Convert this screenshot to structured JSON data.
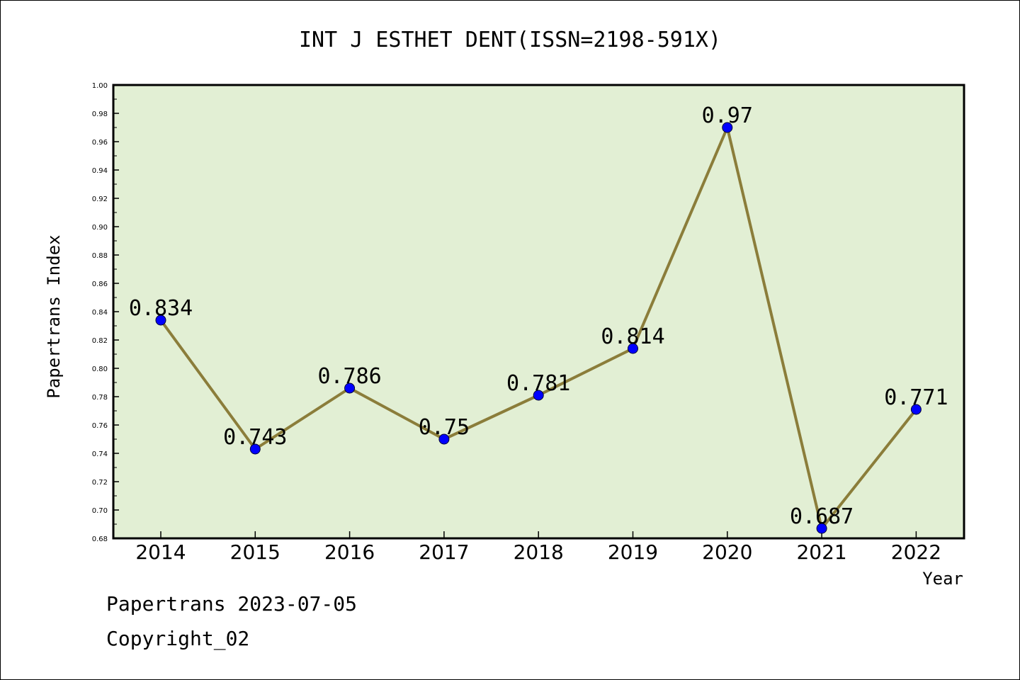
{
  "chart_data": {
    "type": "line",
    "title": "INT J ESTHET DENT(ISSN=2198-591X)",
    "xlabel": "Year",
    "ylabel": "Papertrans Index",
    "categories": [
      "2014",
      "2015",
      "2016",
      "2017",
      "2018",
      "2019",
      "2020",
      "2021",
      "2022"
    ],
    "series": [
      {
        "values": [
          0.834,
          0.743,
          0.786,
          0.75,
          0.781,
          0.814,
          0.97,
          0.687,
          0.771
        ],
        "data_labels": [
          "0.834",
          "0.743",
          "0.786",
          "0.75",
          "0.781",
          "0.814",
          "0.97",
          "0.687",
          "0.771"
        ]
      }
    ],
    "ylim": [
      0.68,
      1.0
    ],
    "yticks": [
      "0.68",
      "0.70",
      "0.72",
      "0.74",
      "0.76",
      "0.78",
      "0.80",
      "0.82",
      "0.84",
      "0.86",
      "0.88",
      "0.90",
      "0.92",
      "0.94",
      "0.96",
      "0.98",
      "1.00"
    ],
    "grid": false,
    "colors": {
      "plot_background": "#e2efd4",
      "line": "#8b7d3a",
      "marker": "#0000ff"
    }
  },
  "footer": {
    "line1": "Papertrans 2023-07-05",
    "line2": "Copyright_02"
  }
}
